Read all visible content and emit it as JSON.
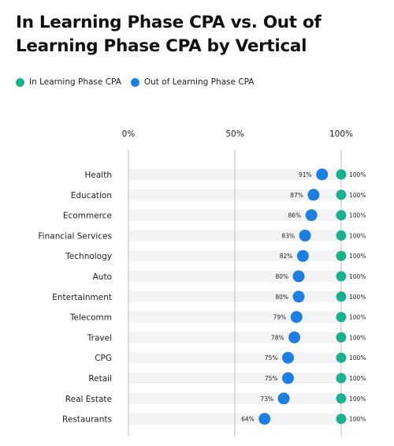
{
  "chart_data": {
    "type": "scatter",
    "title": "In Learning Phase CPA vs. Out of Learning Phase CPA by Vertical",
    "legend": {
      "position": "top-left",
      "items": [
        {
          "name": "In Learning Phase CPA",
          "color": "#1bb18f"
        },
        {
          "name": "Out of Learning Phase CPA",
          "color": "#1f7fe0"
        }
      ]
    },
    "x_ticks": [
      "0%",
      "50%",
      "100%"
    ],
    "xlim": [
      0,
      100
    ],
    "grid": true,
    "categories": [
      "Health",
      "Education",
      "Ecommerce",
      "Financial Services",
      "Technology",
      "Auto",
      "Entertainment",
      "Telecomm",
      "Travel",
      "CPG",
      "Retail",
      "Real Estate",
      "Restaurants"
    ],
    "series": [
      {
        "name": "In Learning Phase CPA",
        "color": "#1bb18f",
        "values": [
          100,
          100,
          100,
          100,
          100,
          100,
          100,
          100,
          100,
          100,
          100,
          100,
          100
        ],
        "labels": [
          "100%",
          "100%",
          "100%",
          "100%",
          "100%",
          "100%",
          "100%",
          "100%",
          "100%",
          "100%",
          "100%",
          "100%",
          "100%"
        ]
      },
      {
        "name": "Out of Learning Phase CPA",
        "color": "#1f7fe0",
        "values": [
          91,
          87,
          86,
          83,
          82,
          80,
          80,
          79,
          78,
          75,
          75,
          73,
          64
        ],
        "labels": [
          "91%",
          "87%",
          "86%",
          "83%",
          "82%",
          "80%",
          "80%",
          "79%",
          "78%",
          "75%",
          "75%",
          "73%",
          "64%"
        ]
      }
    ]
  }
}
